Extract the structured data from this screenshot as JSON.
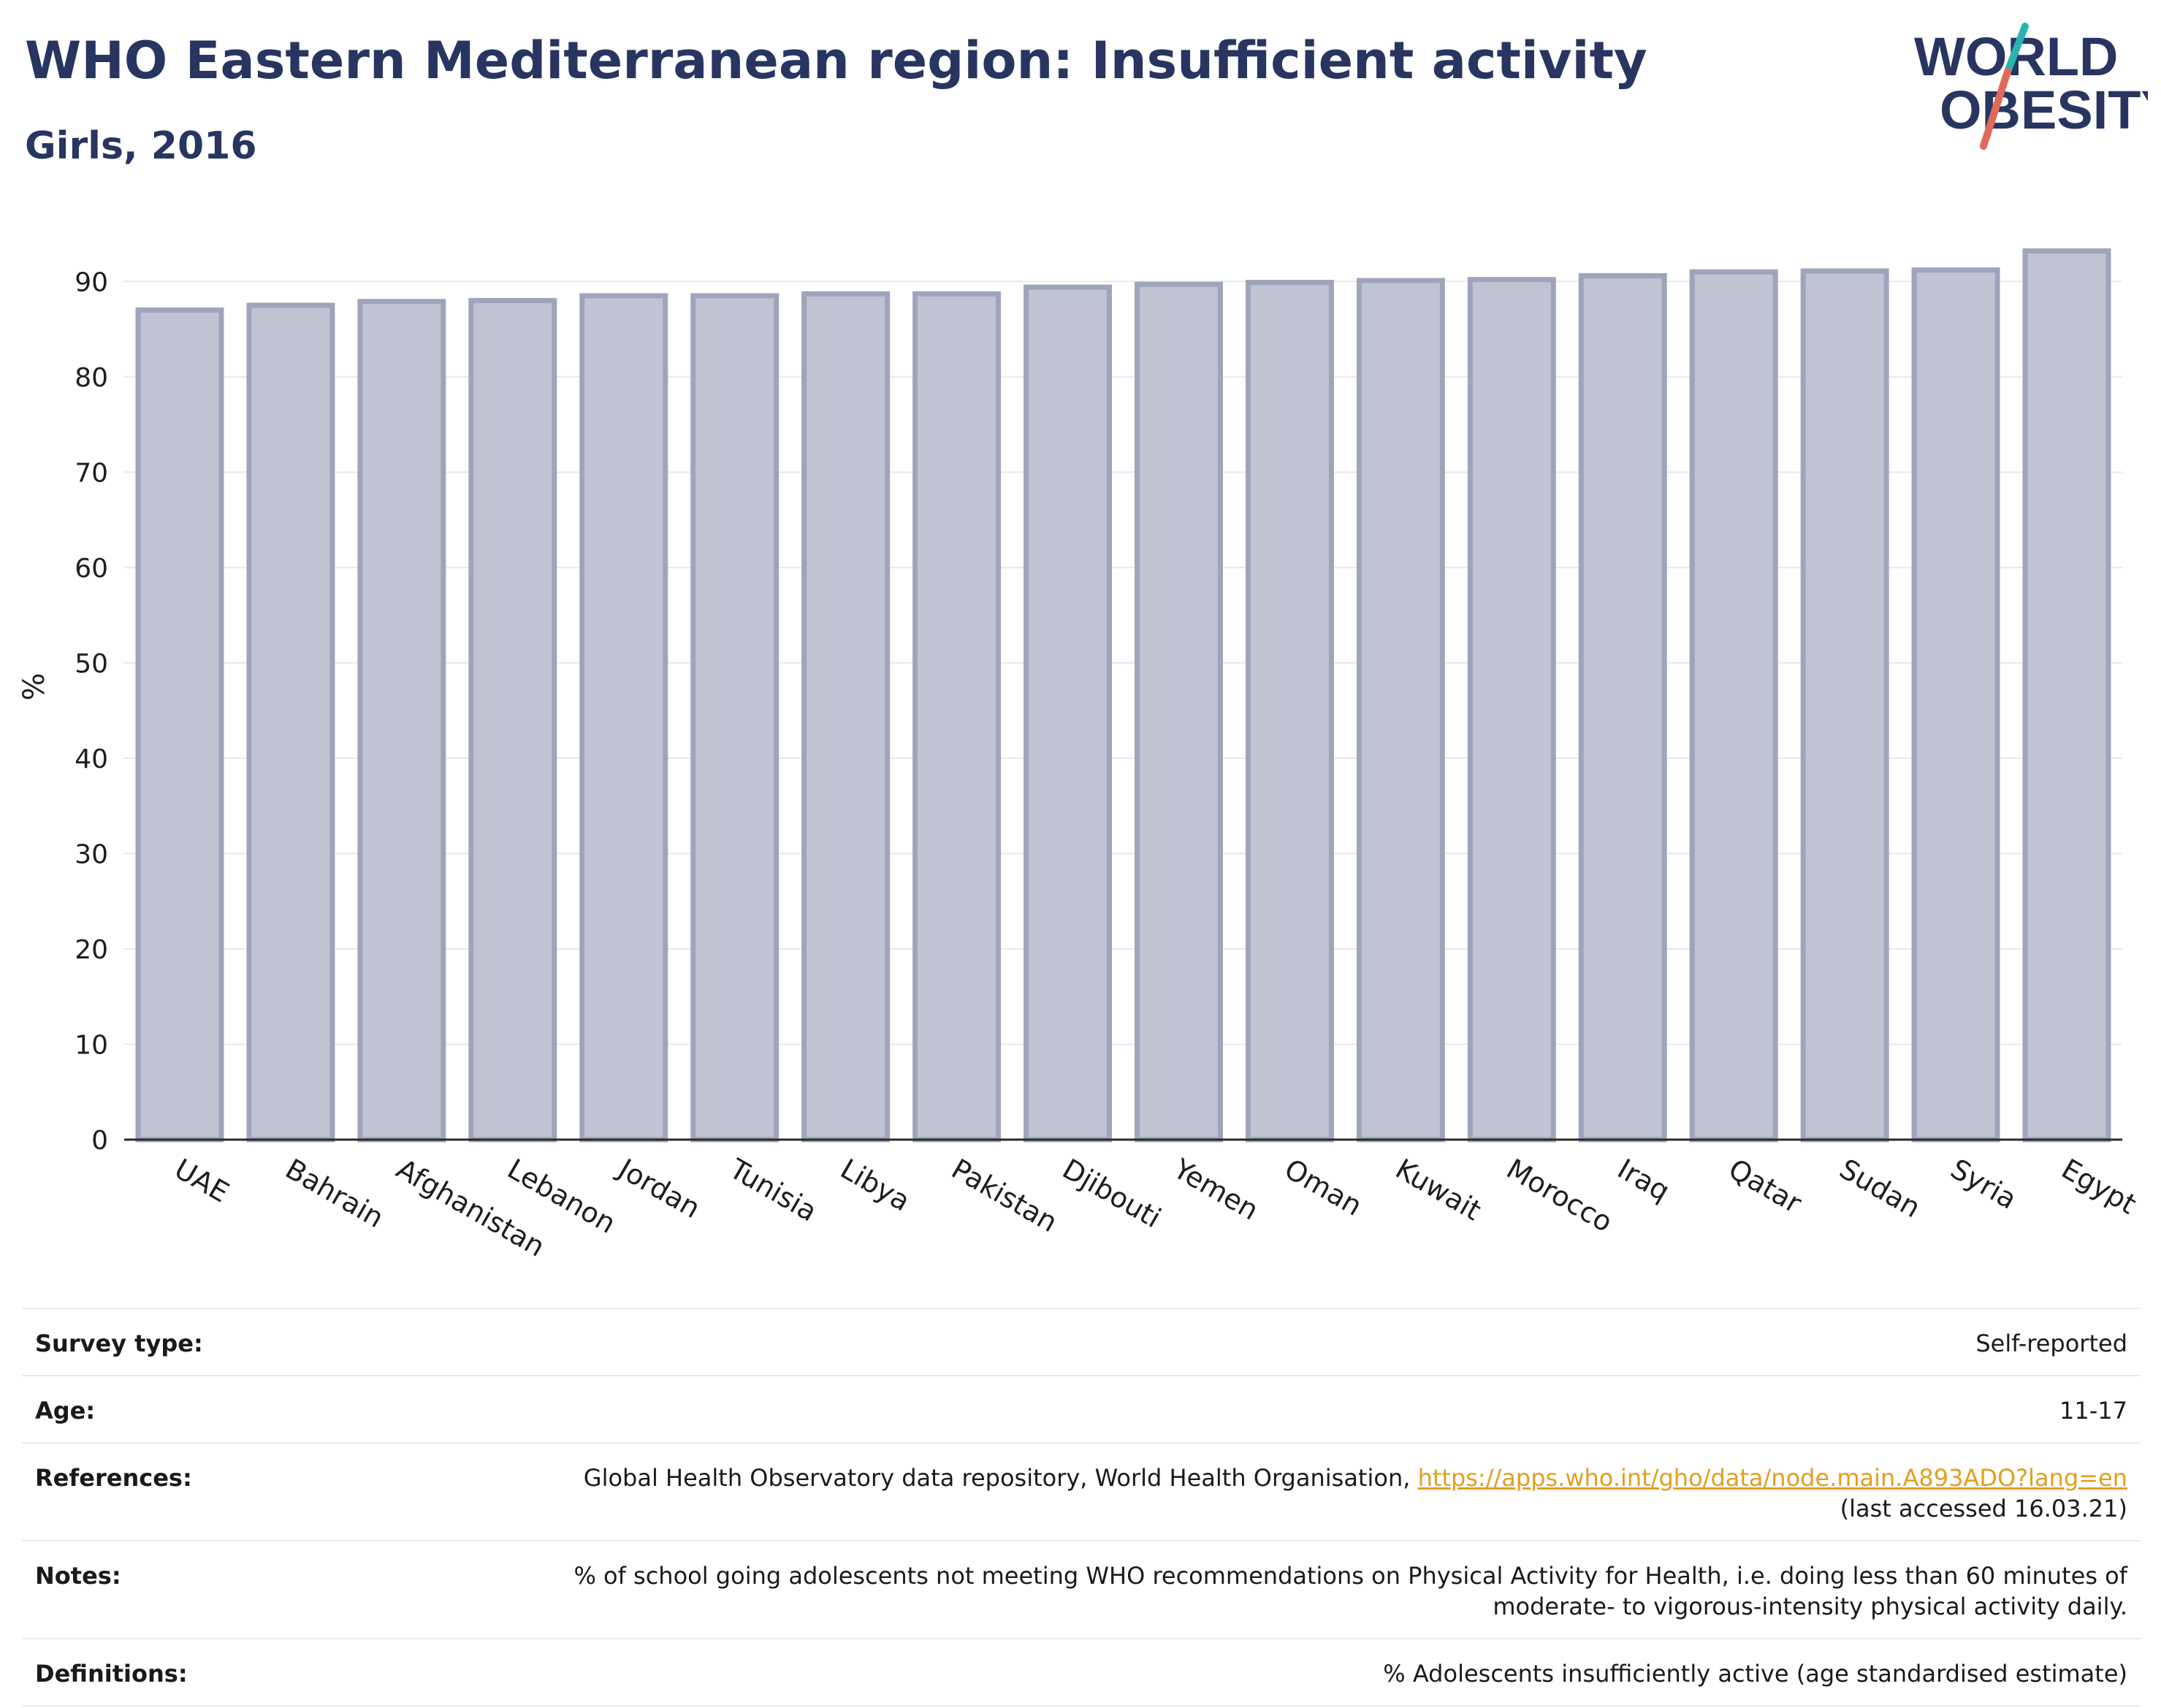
{
  "header": {
    "title": "WHO Eastern Mediterranean region: Insufficient activity",
    "subtitle": "Girls, 2016"
  },
  "logo": {
    "line1": "WORLD",
    "line2": "OBESITY",
    "accent_teal": "#2bb3b1",
    "accent_red": "#e06a5a",
    "text_color": "#283560"
  },
  "chart_data": {
    "type": "bar",
    "title": "WHO Eastern Mediterranean region: Insufficient activity",
    "subtitle": "Girls, 2016",
    "ylabel": "%",
    "xlabel": "",
    "categories": [
      "UAE",
      "Bahrain",
      "Afghanistan",
      "Lebanon",
      "Jordan",
      "Tunisia",
      "Libya",
      "Pakistan",
      "Djibouti",
      "Yemen",
      "Oman",
      "Kuwait",
      "Morocco",
      "Iraq",
      "Qatar",
      "Sudan",
      "Syria",
      "Egypt"
    ],
    "values": [
      87.0,
      87.5,
      87.9,
      88.0,
      88.5,
      88.5,
      88.7,
      88.7,
      89.4,
      89.7,
      89.9,
      90.1,
      90.2,
      90.6,
      91.0,
      91.1,
      91.2,
      93.2
    ],
    "ylim": [
      0,
      95
    ],
    "yticks": [
      0,
      10,
      20,
      30,
      40,
      50,
      60,
      70,
      80,
      90
    ],
    "grid": true,
    "bar_fill": "#bfc3d2",
    "bar_stroke": "#9ea4bb"
  },
  "meta": {
    "survey_type": {
      "label": "Survey type:",
      "value": "Self-reported"
    },
    "age": {
      "label": "Age:",
      "value": "11-17"
    },
    "references": {
      "label": "References:",
      "text": "Global Health Observatory data repository, World Health Organisation, ",
      "link": "https://apps.who.int/gho/data/node.main.A893ADO?lang=en",
      "accessed": "(last accessed 16.03.21)"
    },
    "notes": {
      "label": "Notes:",
      "line1": "% of school going adolescents not meeting WHO recommendations on Physical Activity for Health, i.e. doing less than 60 minutes of",
      "line2": "moderate- to vigorous-intensity physical activity daily."
    },
    "definitions": {
      "label": "Definitions:",
      "value": "% Adolescents insufficiently active (age standardised estimate)"
    }
  }
}
